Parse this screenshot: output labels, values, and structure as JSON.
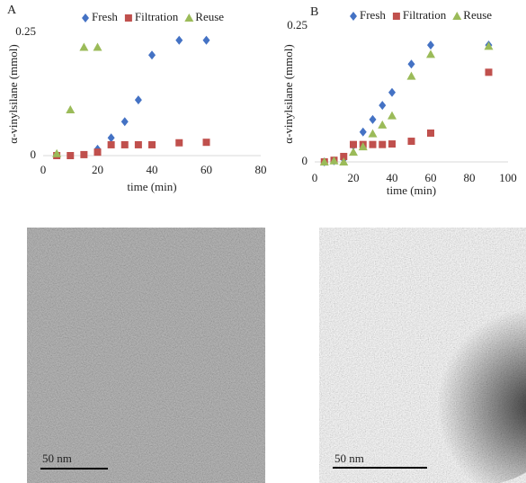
{
  "chart_data": [
    {
      "type": "scatter",
      "title": "A",
      "x_label": "time (min)",
      "y_label": "α-vinylsilane (mmol)",
      "xlim": [
        0,
        80
      ],
      "xticks": [
        0,
        20,
        40,
        60,
        80
      ],
      "ylim": [
        0,
        0.25
      ],
      "yticks": [
        0,
        0.25
      ],
      "legend": "top",
      "grid": false,
      "series": [
        {
          "name": "Fresh",
          "color": "#4472c4",
          "marker": "diamond",
          "x": [
            20,
            25,
            30,
            35,
            40,
            50,
            60
          ],
          "values": [
            0.013,
            0.036,
            0.069,
            0.113,
            0.204,
            0.234,
            0.234
          ]
        },
        {
          "name": "Filtration",
          "color": "#c0504d",
          "marker": "square",
          "x": [
            5,
            10,
            15,
            20,
            25,
            30,
            35,
            40,
            50,
            60
          ],
          "values": [
            0,
            0,
            0.002,
            0.007,
            0.022,
            0.022,
            0.022,
            0.022,
            0.026,
            0.027
          ]
        },
        {
          "name": "Reuse",
          "color": "#9bbb59",
          "marker": "triangle",
          "x": [
            5,
            10,
            15,
            20
          ],
          "values": [
            0.004,
            0.093,
            0.22,
            0.22
          ]
        }
      ]
    },
    {
      "type": "scatter",
      "title": "B",
      "x_label": "time (min)",
      "y_label": "α-vinylsilane (mmol)",
      "xlim": [
        0,
        100
      ],
      "xticks": [
        0,
        20,
        40,
        60,
        80,
        100
      ],
      "ylim": [
        0,
        0.25
      ],
      "yticks": [
        0,
        0.25
      ],
      "legend": "top",
      "grid": false,
      "series": [
        {
          "name": "Fresh",
          "color": "#4472c4",
          "marker": "diamond",
          "x": [
            5,
            10,
            15,
            20,
            25,
            30,
            35,
            40,
            50,
            60,
            90
          ],
          "values": [
            0,
            0.002,
            0.005,
            0.03,
            0.055,
            0.078,
            0.104,
            0.128,
            0.18,
            0.215,
            0.215
          ]
        },
        {
          "name": "Filtration",
          "color": "#c0504d",
          "marker": "square",
          "x": [
            5,
            10,
            15,
            20,
            25,
            30,
            35,
            40,
            50,
            60,
            90
          ],
          "values": [
            0,
            0.003,
            0.01,
            0.032,
            0.032,
            0.032,
            0.032,
            0.033,
            0.038,
            0.053,
            0.165
          ]
        },
        {
          "name": "Reuse",
          "color": "#9bbb59",
          "marker": "triangle",
          "x": [
            5,
            10,
            15,
            20,
            25,
            30,
            35,
            40,
            50,
            60,
            90
          ],
          "values": [
            0,
            0.002,
            0,
            0.018,
            0.028,
            0.052,
            0.068,
            0.085,
            0.158,
            0.198,
            0.213
          ]
        }
      ]
    }
  ],
  "images": [
    {
      "scale_bar": "50 nm"
    },
    {
      "scale_bar": "50 nm"
    }
  ]
}
